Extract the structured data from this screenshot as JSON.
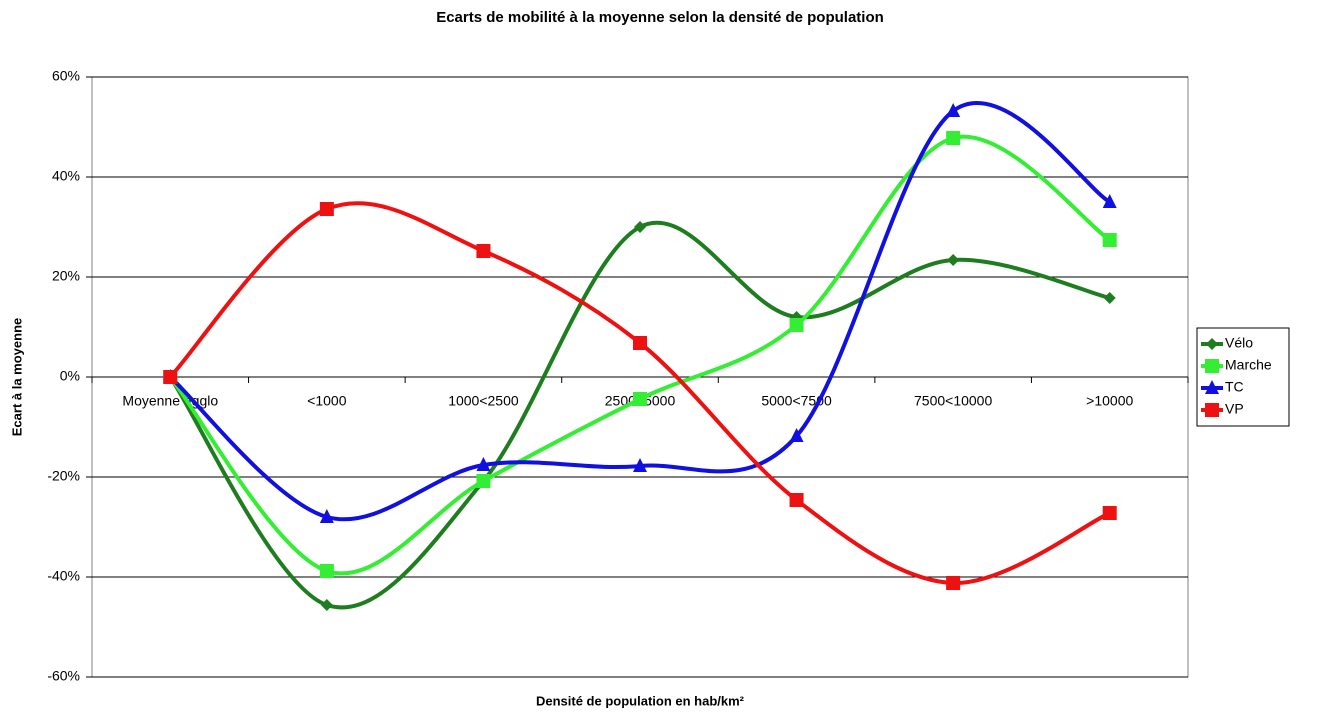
{
  "chart_data": {
    "type": "line",
    "title": "Ecarts de mobilité à la moyenne selon la densité de population",
    "x_label": "Densité de population en hab/km²",
    "y_label": "Ecart à la moyenne",
    "categories": [
      "Moyenne agglo",
      "<1000",
      "1000<2500",
      "2500<5000",
      "5000<7500",
      "7500<10000",
      ">10000"
    ],
    "series": [
      {
        "name": "Vélo",
        "color": "#1e7d1e",
        "marker": "diamond",
        "values": [
          0,
          -45.6,
          -20.8,
          30,
          12,
          23.4,
          15.8
        ]
      },
      {
        "name": "Marche",
        "color": "#33ee33",
        "marker": "square",
        "values": [
          0,
          -38.8,
          -20.8,
          -4.4,
          10.4,
          47.8,
          27.4
        ]
      },
      {
        "name": "TC",
        "color": "#1010e0",
        "marker": "triangle",
        "values": [
          0,
          -28,
          -17.6,
          -17.8,
          -11.8,
          53.2,
          35
        ]
      },
      {
        "name": "VP",
        "color": "#ee1111",
        "marker": "square",
        "values": [
          0,
          33.6,
          25.2,
          6.8,
          -24.6,
          -41.2,
          -27.2
        ]
      }
    ],
    "ylim": [
      -60,
      60
    ],
    "yticks": [
      {
        "value": -60,
        "label": "-60%"
      },
      {
        "value": -40,
        "label": "-40%"
      },
      {
        "value": -20,
        "label": "-20%"
      },
      {
        "value": 0,
        "label": "0%"
      },
      {
        "value": 20,
        "label": "20%"
      },
      {
        "value": 40,
        "label": "40%"
      },
      {
        "value": 60,
        "label": "60%"
      }
    ],
    "grid": true,
    "smooth": true,
    "legend": "right"
  }
}
